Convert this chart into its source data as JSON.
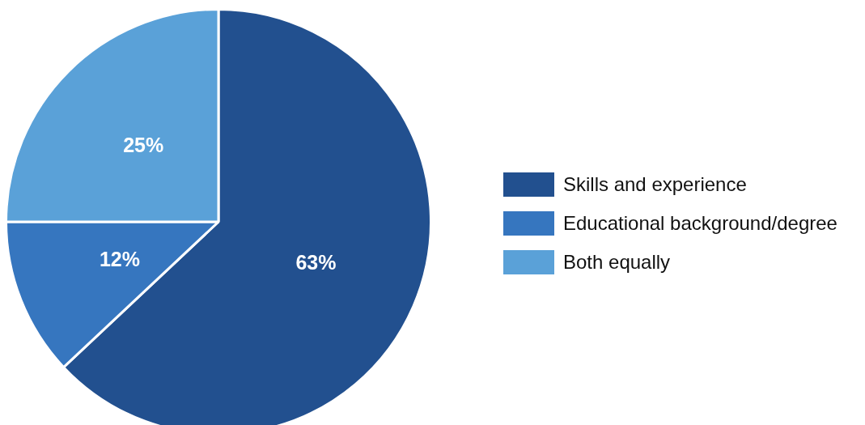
{
  "chart_data": {
    "type": "pie",
    "categories": [
      "Skills and experience",
      "Educational background/degree",
      "Both equally"
    ],
    "values": [
      63,
      12,
      25
    ],
    "colors": [
      "#22508f",
      "#3676bf",
      "#5aa1d8"
    ],
    "value_labels": [
      "63%",
      "12%",
      "25%"
    ],
    "legend": "right"
  }
}
